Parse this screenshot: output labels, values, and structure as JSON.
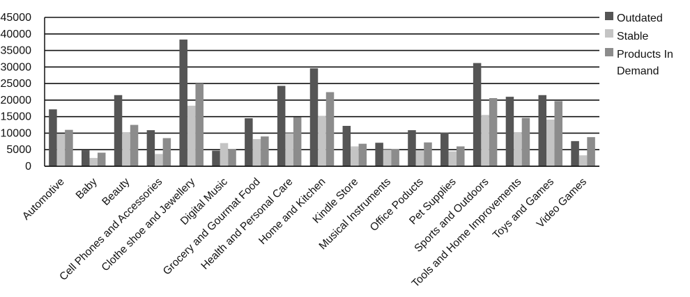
{
  "chart_data": {
    "type": "bar",
    "categories": [
      "Automotive",
      "Baby",
      "Beauty",
      "Cell Phones and Accessories",
      "Clothe shoe and Jewellery",
      "Digital Music",
      "Grocery and Gourmat Food",
      "Health and Personal Care",
      "Home and Kitchen",
      "Kindle Store",
      "Musical Instruments",
      "Office Poducts",
      "Pet Supplies",
      "Sports and Outdoors",
      "Tools and Home Improvements",
      "Toys and Games",
      "Video Games"
    ],
    "series": [
      {
        "name": "Outdated",
        "color": "#555555",
        "values": [
          17200,
          4800,
          21500,
          10900,
          38300,
          4700,
          14500,
          24300,
          29600,
          12200,
          7100,
          10900,
          10200,
          31200,
          21000,
          21500,
          7600
        ]
      },
      {
        "name": "Stable",
        "color": "#c4c4c4",
        "values": [
          9800,
          2500,
          10300,
          3700,
          18300,
          7000,
          8200,
          10000,
          15200,
          6000,
          5000,
          4800,
          4500,
          15500,
          10300,
          14100,
          3300
        ]
      },
      {
        "name": "Products In Demand",
        "color": "#8c8c8c",
        "values": [
          11000,
          4100,
          12500,
          8500,
          25000,
          5200,
          9000,
          14800,
          22400,
          6800,
          5200,
          7200,
          6000,
          20600,
          14600,
          19700,
          8800
        ]
      }
    ],
    "legend": {
      "labels": [
        "Outdated",
        "Stable",
        "Products In",
        "Demand"
      ],
      "position": "right"
    },
    "y_ticks": [
      "0",
      "5000",
      "10000",
      "15000",
      "20000",
      "25000",
      "30000",
      "35000",
      "40000",
      "45000"
    ],
    "ylim": [
      0,
      45000
    ],
    "grid": true,
    "title": "",
    "xlabel": "",
    "ylabel": ""
  }
}
